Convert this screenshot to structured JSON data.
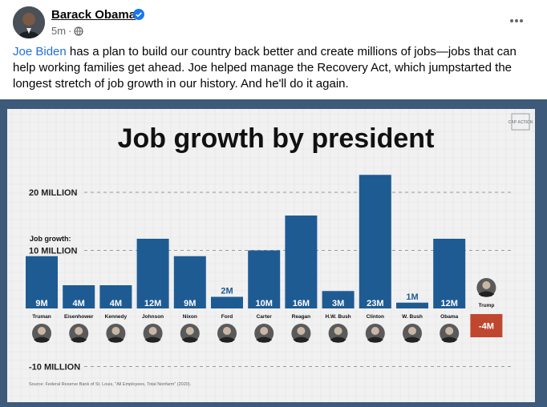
{
  "post": {
    "author": "Barack Obama",
    "time": "5m",
    "separator": "·",
    "text_link": "Joe Biden",
    "text_body": " has a plan to build our country back better and create millions of jobs—jobs that can help working families get ahead. Joe helped manage the Recovery Act, which jumpstarted the longest stretch of job growth in our history. And he'll do it again."
  },
  "icons": {
    "verified": "verified-badge-icon",
    "audience": "globe-icon",
    "more": "more-horizontal-icon"
  },
  "colors": {
    "bar": "#1f5b93",
    "negative": "#c0472f",
    "frame": "#3d5a7a",
    "link": "#216fdb"
  },
  "graphic": {
    "logo": "CAP ACTION",
    "source": "Source: Federal Reserve Bank of St. Louis, \"All Employees, Total Nonfarm\" (2020)."
  },
  "chart_data": {
    "type": "bar",
    "title": "Job growth by president",
    "ylabel": "Job growth:",
    "ytick_labels": [
      "20 MILLION",
      "10 MILLION",
      "-10 MILLION"
    ],
    "ytick_values": [
      20,
      10,
      -10
    ],
    "ylim": [
      -10,
      23
    ],
    "grid": true,
    "categories": [
      "Truman",
      "Eisenhower",
      "Kennedy",
      "Johnson",
      "Nixon",
      "Ford",
      "Carter",
      "Reagan",
      "H.W. Bush",
      "Clinton",
      "W. Bush",
      "Obama",
      "Trump"
    ],
    "values": [
      9,
      4,
      4,
      12,
      9,
      2,
      10,
      16,
      3,
      23,
      1,
      12,
      -4
    ],
    "value_labels": [
      "9M",
      "4M",
      "4M",
      "12M",
      "9M",
      "2M",
      "10M",
      "16M",
      "3M",
      "23M",
      "1M",
      "12M",
      "-4M"
    ]
  }
}
